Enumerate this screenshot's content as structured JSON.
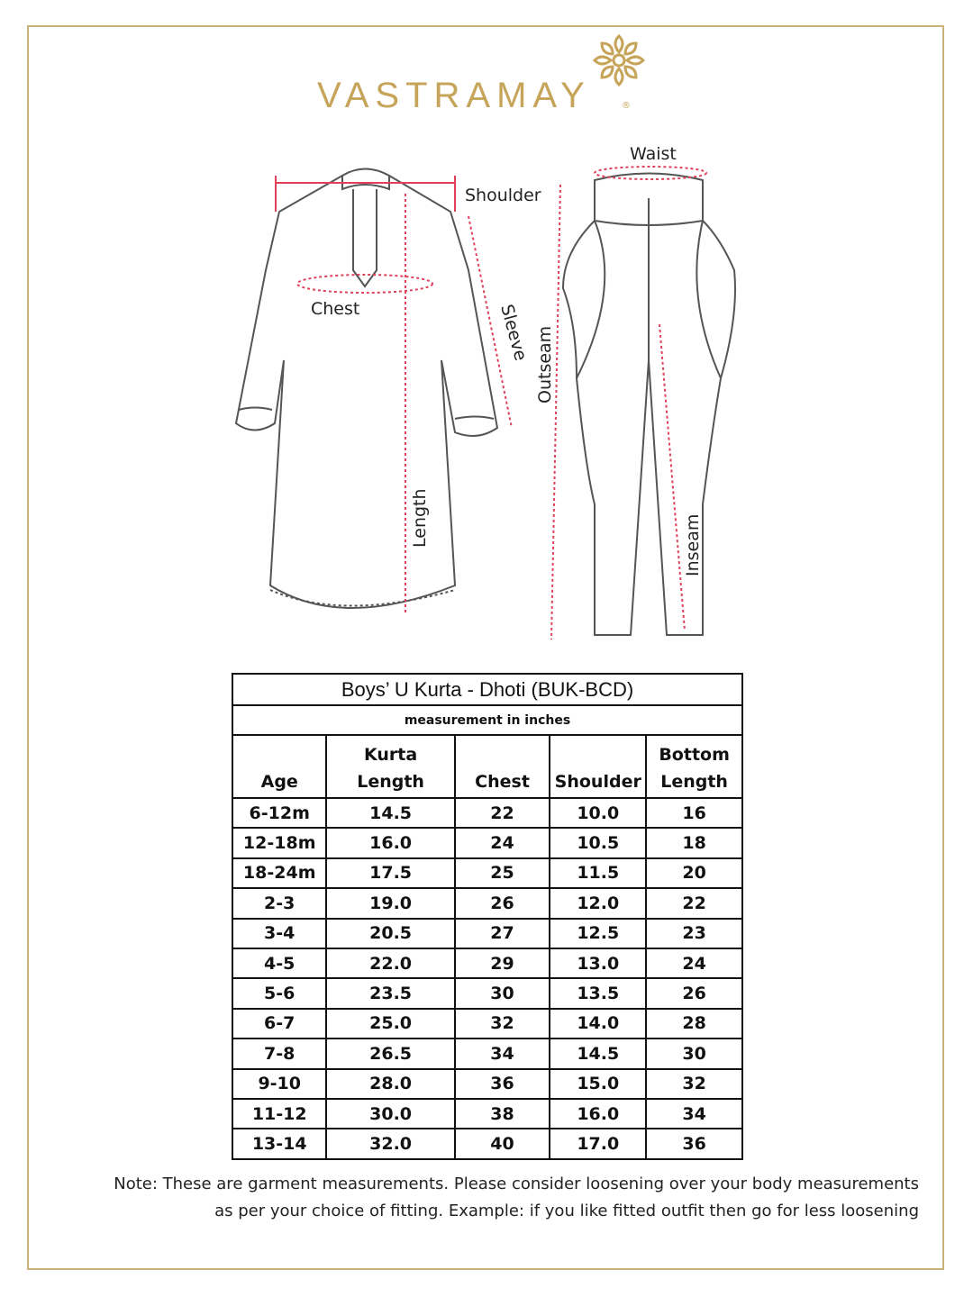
{
  "brand": {
    "name": "VASTRAMAY",
    "registered": "®",
    "color": "#c6a45a"
  },
  "diagram": {
    "kurta_labels": {
      "shoulder": "Shoulder",
      "chest": "Chest",
      "sleeve": "Sleeve",
      "length": "Length"
    },
    "dhoti_labels": {
      "waist": "Waist",
      "outseam": "Outseam",
      "inseam": "Inseam"
    },
    "measure_line_color": "#e0405a"
  },
  "table": {
    "title": "Boys’ U Kurta - Dhoti (BUK-BCD)",
    "subtitle": "measurement in inches",
    "headers": [
      "Age",
      "Kurta Length",
      "Chest",
      "Shoulder",
      "Bottom Length"
    ],
    "rows": [
      [
        "6-12m",
        "14.5",
        "22",
        "10.0",
        "16"
      ],
      [
        "12-18m",
        "16.0",
        "24",
        "10.5",
        "18"
      ],
      [
        "18-24m",
        "17.5",
        "25",
        "11.5",
        "20"
      ],
      [
        "2-3",
        "19.0",
        "26",
        "12.0",
        "22"
      ],
      [
        "3-4",
        "20.5",
        "27",
        "12.5",
        "23"
      ],
      [
        "4-5",
        "22.0",
        "29",
        "13.0",
        "24"
      ],
      [
        "5-6",
        "23.5",
        "30",
        "13.5",
        "26"
      ],
      [
        "6-7",
        "25.0",
        "32",
        "14.0",
        "28"
      ],
      [
        "7-8",
        "26.5",
        "34",
        "14.5",
        "30"
      ],
      [
        "9-10",
        "28.0",
        "36",
        "15.0",
        "32"
      ],
      [
        "11-12",
        "30.0",
        "38",
        "16.0",
        "34"
      ],
      [
        "13-14",
        "32.0",
        "40",
        "17.0",
        "36"
      ]
    ]
  },
  "note": {
    "line1": "Note: These are garment measurements. Please consider loosening over your body measurements",
    "line2": "as per your choice of fitting. Example: if you like fitted outfit then go for less loosening"
  }
}
